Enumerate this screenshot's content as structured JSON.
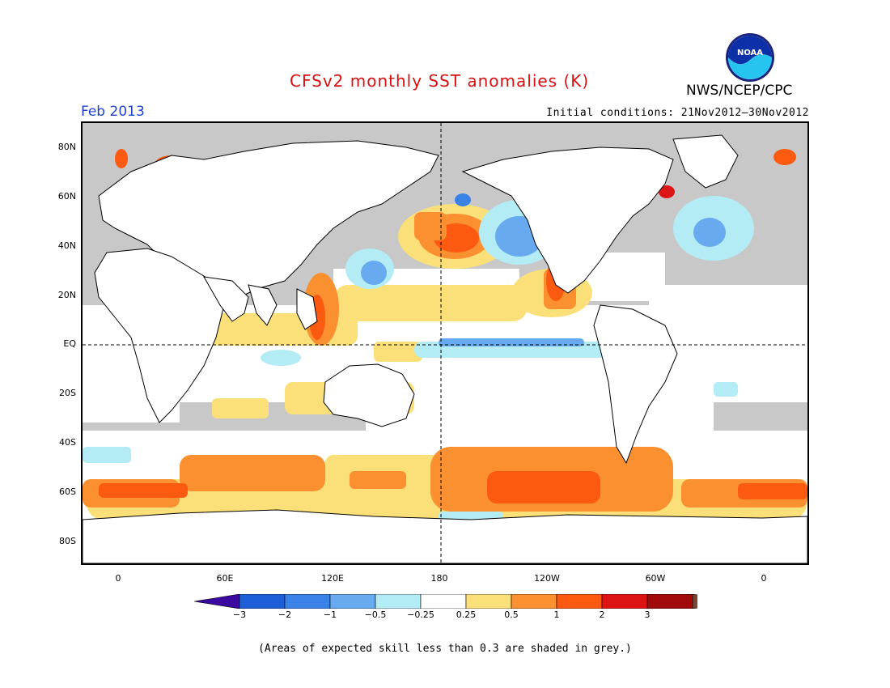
{
  "header": {
    "title": "CFSv2 monthly SST anomalies (K)",
    "period": "Feb 2013",
    "initial_conditions": "Initial conditions: 21Nov2012–30Nov2012",
    "agency": "NWS/NCEP/CPC",
    "logo_text": "NOAA"
  },
  "axes": {
    "lat_labels": [
      "80N",
      "60N",
      "40N",
      "20N",
      "EQ",
      "20S",
      "40S",
      "60S",
      "80S"
    ],
    "lon_labels": [
      "0",
      "60E",
      "120E",
      "180",
      "120W",
      "60W",
      "0"
    ]
  },
  "colorbar": {
    "labels": [
      "−3",
      "−2",
      "−1",
      "−0.5",
      "−0.25",
      "0.25",
      "0.5",
      "1",
      "2",
      "3"
    ],
    "colors": [
      "#3a0aa0",
      "#1e5fd8",
      "#3a82e8",
      "#68aaf0",
      "#b4ecf6",
      "#ffffff",
      "#fbe07a",
      "#fb9030",
      "#fb5a10",
      "#dc1414",
      "#a00a0a",
      "#7a4632"
    ]
  },
  "note": "(Areas of expected skill less than 0.3 are shaded in grey.)",
  "colors": {
    "skill_grey": "#c8c8c8",
    "land": "#ffffff",
    "title_red": "#d81010",
    "period_blue": "#2040d0"
  }
}
